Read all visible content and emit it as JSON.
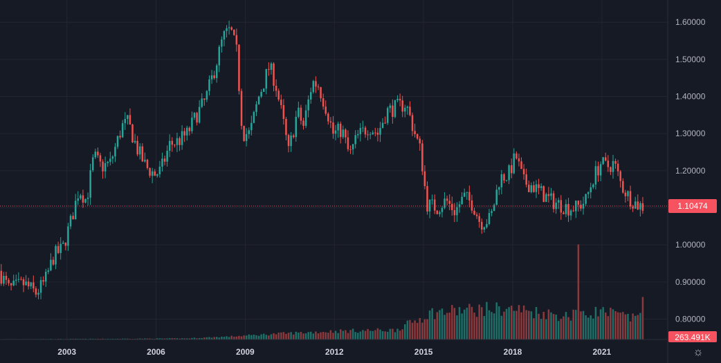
{
  "chart_data": {
    "type": "candlestick",
    "price_scale": {
      "ticks": [
        "1.60000",
        "1.50000",
        "1.40000",
        "1.30000",
        "1.20000",
        "1.10000",
        "1.00000",
        "0.90000",
        "0.80000"
      ],
      "tick_values": [
        1.6,
        1.5,
        1.4,
        1.3,
        1.2,
        1.1,
        1.0,
        0.9,
        0.8
      ],
      "range": [
        0.745,
        1.66
      ]
    },
    "time_scale": {
      "labels": [
        "2003",
        "2006",
        "2009",
        "2012",
        "2015",
        "2018",
        "2021"
      ],
      "label_years": [
        2003,
        2006,
        2009,
        2012,
        2015,
        2018,
        2021
      ],
      "range": [
        2000.75,
        2022.4
      ]
    },
    "last_price": {
      "label": "1.10474",
      "value": 1.10474,
      "color": "#f7525f"
    },
    "last_volume": {
      "label": "263.491K",
      "color": "#f7525f"
    },
    "colors": {
      "up": "#26a69a",
      "down": "#ef5350",
      "background": "#161a25",
      "grid": "#232632",
      "volume_up": "#1f6e68",
      "volume_down": "#8a3a3d"
    },
    "price_path": [
      [
        2000.75,
        0.93
      ],
      [
        2001.1,
        0.88
      ],
      [
        2001.6,
        0.895
      ],
      [
        2002.0,
        0.87
      ],
      [
        2002.3,
        0.9
      ],
      [
        2002.6,
        0.97
      ],
      [
        2002.9,
        0.99
      ],
      [
        2003.2,
        1.07
      ],
      [
        2003.45,
        1.15
      ],
      [
        2003.7,
        1.12
      ],
      [
        2003.95,
        1.24
      ],
      [
        2004.2,
        1.21
      ],
      [
        2004.5,
        1.22
      ],
      [
        2004.9,
        1.32
      ],
      [
        2005.1,
        1.33
      ],
      [
        2005.4,
        1.26
      ],
      [
        2005.7,
        1.21
      ],
      [
        2006.0,
        1.19
      ],
      [
        2006.2,
        1.2
      ],
      [
        2006.5,
        1.27
      ],
      [
        2006.8,
        1.28
      ],
      [
        2007.1,
        1.3
      ],
      [
        2007.4,
        1.35
      ],
      [
        2007.7,
        1.39
      ],
      [
        2008.0,
        1.47
      ],
      [
        2008.3,
        1.56
      ],
      [
        2008.55,
        1.58
      ],
      [
        2008.75,
        1.52
      ],
      [
        2008.95,
        1.3
      ],
      [
        2009.2,
        1.3
      ],
      [
        2009.5,
        1.4
      ],
      [
        2009.85,
        1.48
      ],
      [
        2010.05,
        1.44
      ],
      [
        2010.3,
        1.34
      ],
      [
        2010.5,
        1.25
      ],
      [
        2010.8,
        1.36
      ],
      [
        2011.0,
        1.32
      ],
      [
        2011.3,
        1.44
      ],
      [
        2011.5,
        1.43
      ],
      [
        2011.8,
        1.36
      ],
      [
        2012.0,
        1.3
      ],
      [
        2012.3,
        1.31
      ],
      [
        2012.55,
        1.24
      ],
      [
        2012.8,
        1.29
      ],
      [
        2013.2,
        1.32
      ],
      [
        2013.5,
        1.3
      ],
      [
        2013.8,
        1.36
      ],
      [
        2014.1,
        1.37
      ],
      [
        2014.45,
        1.38
      ],
      [
        2014.75,
        1.3
      ],
      [
        2014.95,
        1.25
      ],
      [
        2015.15,
        1.11
      ],
      [
        2015.5,
        1.1
      ],
      [
        2015.8,
        1.12
      ],
      [
        2016.1,
        1.09
      ],
      [
        2016.4,
        1.13
      ],
      [
        2016.7,
        1.11
      ],
      [
        2016.95,
        1.06
      ],
      [
        2017.3,
        1.07
      ],
      [
        2017.6,
        1.18
      ],
      [
        2017.9,
        1.19
      ],
      [
        2018.15,
        1.24
      ],
      [
        2018.4,
        1.17
      ],
      [
        2018.7,
        1.16
      ],
      [
        2019.0,
        1.14
      ],
      [
        2019.3,
        1.12
      ],
      [
        2019.6,
        1.11
      ],
      [
        2019.9,
        1.1
      ],
      [
        2020.2,
        1.1
      ],
      [
        2020.5,
        1.12
      ],
      [
        2020.75,
        1.18
      ],
      [
        2021.0,
        1.22
      ],
      [
        2021.2,
        1.21
      ],
      [
        2021.45,
        1.22
      ],
      [
        2021.7,
        1.16
      ],
      [
        2021.95,
        1.13
      ],
      [
        2022.2,
        1.11
      ],
      [
        2022.4,
        1.104
      ]
    ],
    "volume_path": [
      [
        2000.75,
        0.01
      ],
      [
        2004.5,
        0.02
      ],
      [
        2007.0,
        0.03
      ],
      [
        2008.5,
        0.08
      ],
      [
        2010.0,
        0.15
      ],
      [
        2012.0,
        0.22
      ],
      [
        2014.0,
        0.25
      ],
      [
        2014.7,
        0.5
      ],
      [
        2015.2,
        0.7
      ],
      [
        2016.0,
        0.75
      ],
      [
        2017.0,
        0.8
      ],
      [
        2018.0,
        0.8
      ],
      [
        2019.0,
        0.7
      ],
      [
        2019.9,
        0.6
      ],
      [
        2020.15,
        1.0
      ],
      [
        2020.3,
        0.6
      ],
      [
        2020.8,
        0.75
      ],
      [
        2021.5,
        0.65
      ],
      [
        2022.0,
        0.55
      ],
      [
        2022.3,
        0.9
      ]
    ],
    "volume_spike": {
      "year": 2020.2,
      "relative": 2.5
    }
  }
}
